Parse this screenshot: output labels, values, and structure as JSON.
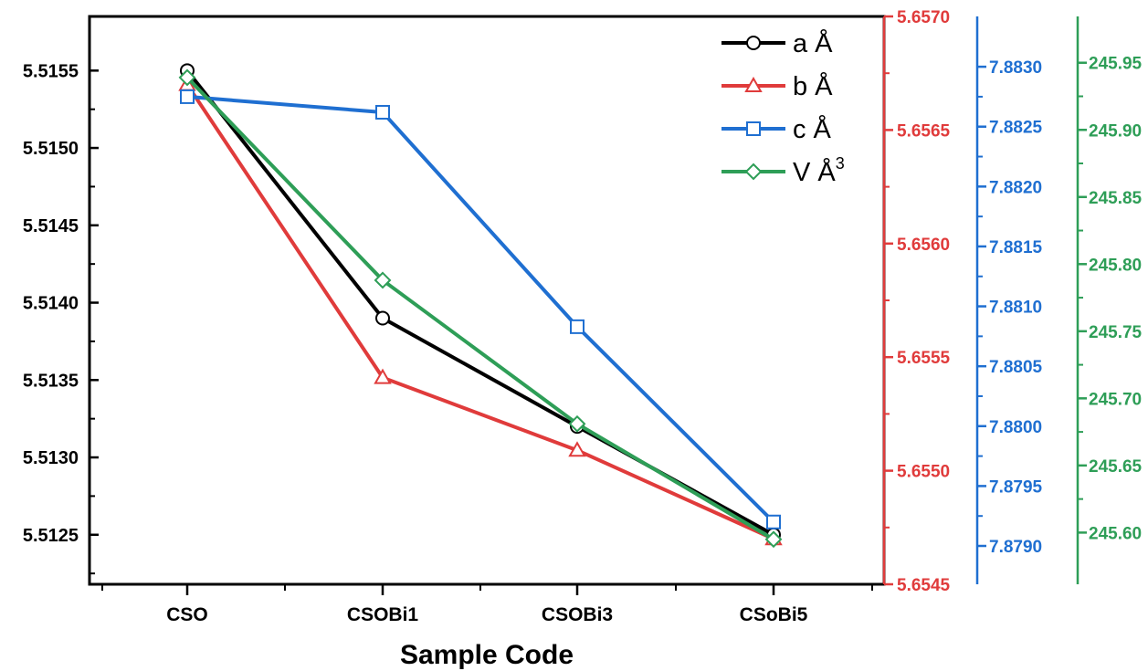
{
  "chart_data": {
    "type": "line",
    "xlabel": "Sample Code",
    "categories": [
      "CSO",
      "CSOBi1",
      "CSOBi3",
      "CSoBi5"
    ],
    "colors": {
      "a": "#000000",
      "b": "#e03b3b",
      "c": "#1f6fd1",
      "v": "#2e9e57"
    },
    "axes": {
      "left": {
        "ylim": [
          5.51218,
          5.51585
        ],
        "ticks": [
          "5.5125",
          "5.5130",
          "5.5135",
          "5.5140",
          "5.5145",
          "5.5150",
          "5.5155"
        ],
        "color": "#000000"
      },
      "red": {
        "ylim": [
          5.6545,
          5.657
        ],
        "ticks": [
          "5.6545",
          "5.6550",
          "5.6555",
          "5.6560",
          "5.6565",
          "5.6570"
        ],
        "color": "#e03b3b"
      },
      "blue": {
        "ylim": [
          7.87868,
          7.88342
        ],
        "ticks": [
          "7.8790",
          "7.8795",
          "7.8800",
          "7.8805",
          "7.8810",
          "7.8815",
          "7.8820",
          "7.8825",
          "7.8830"
        ],
        "color": "#1f6fd1"
      },
      "green": {
        "ylim": [
          245.5615,
          245.9845
        ],
        "ticks": [
          "245.60",
          "245.65",
          "245.70",
          "245.75",
          "245.80",
          "245.85",
          "245.90",
          "245.95"
        ],
        "color": "#2e9e57"
      }
    },
    "series": [
      {
        "key": "a",
        "axis": "left",
        "marker": "circle",
        "values": [
          5.5155,
          5.5139,
          5.5132,
          5.5125
        ]
      },
      {
        "key": "b",
        "axis": "red",
        "marker": "triangle",
        "values": [
          5.6567,
          5.65541,
          5.65509,
          5.6547
        ]
      },
      {
        "key": "c",
        "axis": "blue",
        "marker": "square",
        "values": [
          7.88275,
          7.88262,
          7.88083,
          7.8792
        ]
      },
      {
        "key": "v",
        "axis": "green",
        "marker": "diamond",
        "values": [
          245.939,
          245.788,
          245.681,
          245.595
        ]
      }
    ],
    "legend": {
      "placement": "top-right",
      "entries": [
        {
          "text": "a Å",
          "sup": ""
        },
        {
          "text": "b Å",
          "sup": ""
        },
        {
          "text": "c Å",
          "sup": ""
        },
        {
          "text": "V Å",
          "sup": "3"
        }
      ]
    }
  }
}
